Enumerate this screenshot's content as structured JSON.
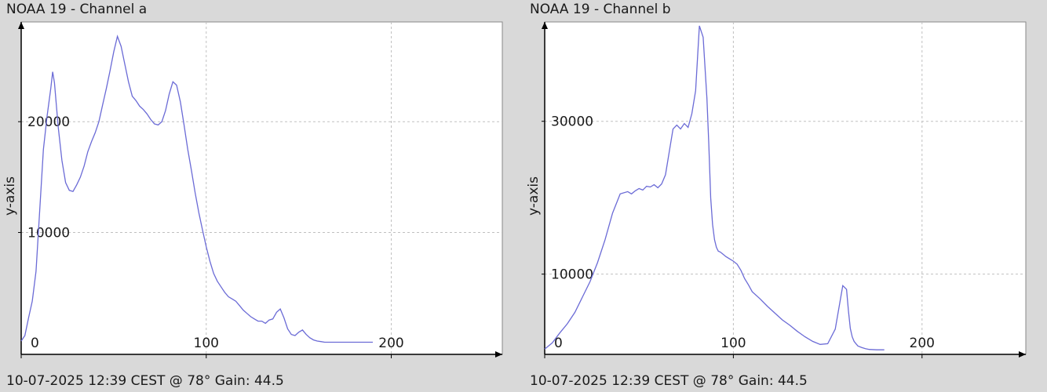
{
  "chart_data": [
    {
      "type": "line",
      "title": "NOAA 19 - Channel a",
      "ylabel": "y-axis",
      "footer": "10-07-2025 12:39 CEST @ 78° Gain: 44.5",
      "xlim": [
        0,
        260
      ],
      "ylim": [
        -1000,
        29000
      ],
      "xticks": [
        0,
        100,
        200
      ],
      "yticks": [
        10000,
        20000
      ],
      "grid": true,
      "color": "#6b6bd6",
      "series": [
        {
          "x": [
            0,
            2,
            4,
            6,
            8,
            10,
            12,
            14,
            16,
            17,
            18,
            19,
            20,
            22,
            24,
            26,
            28,
            30,
            32,
            34,
            36,
            38,
            40,
            42,
            44,
            46,
            48,
            50,
            52,
            54,
            56,
            58,
            60,
            62,
            64,
            66,
            68,
            70,
            72,
            74,
            76,
            78,
            80,
            82,
            84,
            86,
            88,
            90,
            92,
            94,
            96,
            98,
            100,
            102,
            104,
            106,
            108,
            110,
            112,
            114,
            116,
            118,
            120,
            122,
            124,
            126,
            128,
            130,
            132,
            134,
            136,
            138,
            140,
            142,
            144,
            146,
            148,
            150,
            152,
            154,
            156,
            158,
            160,
            162,
            164,
            166,
            168,
            170,
            172,
            174,
            176,
            178,
            180,
            185,
            190
          ],
          "y": [
            200,
            700,
            2300,
            3800,
            6500,
            12000,
            17500,
            20500,
            23000,
            24500,
            23500,
            21500,
            19500,
            16500,
            14500,
            13800,
            13700,
            14300,
            15000,
            16000,
            17300,
            18200,
            19000,
            20000,
            21500,
            23000,
            24600,
            26300,
            27700,
            26800,
            25200,
            23600,
            22300,
            21900,
            21400,
            21100,
            20700,
            20200,
            19800,
            19700,
            20000,
            21000,
            22500,
            23600,
            23300,
            21800,
            19700,
            17500,
            15600,
            13600,
            11800,
            10200,
            8700,
            7400,
            6300,
            5600,
            5100,
            4600,
            4200,
            4000,
            3800,
            3400,
            3000,
            2700,
            2400,
            2200,
            2000,
            2000,
            1800,
            2100,
            2200,
            2800,
            3100,
            2300,
            1300,
            800,
            700,
            1000,
            1200,
            800,
            500,
            300,
            200,
            150,
            100,
            100,
            100,
            100,
            100,
            100,
            100,
            100,
            100,
            100,
            100
          ],
          "y_note": ""
        }
      ]
    },
    {
      "type": "line",
      "title": "NOAA 19 - Channel b",
      "ylabel": "y-axis",
      "footer": "10-07-2025 12:39 CEST @ 78° Gain: 44.5",
      "xlim": [
        0,
        255
      ],
      "ylim": [
        -500,
        43000
      ],
      "xticks": [
        0,
        100,
        200
      ],
      "yticks": [
        10000,
        30000
      ],
      "grid": true,
      "color": "#6b6bd6",
      "series": [
        {
          "x": [
            0,
            4,
            8,
            12,
            16,
            20,
            24,
            28,
            32,
            36,
            40,
            44,
            46,
            48,
            50,
            52,
            54,
            56,
            58,
            60,
            62,
            64,
            66,
            68,
            70,
            72,
            74,
            76,
            78,
            80,
            82,
            84,
            86,
            87,
            88,
            89,
            90,
            91,
            92,
            93,
            94,
            96,
            98,
            100,
            102,
            104,
            106,
            108,
            110,
            114,
            118,
            122,
            126,
            130,
            134,
            138,
            142,
            146,
            150,
            154,
            158,
            160,
            161,
            162,
            163,
            164,
            165,
            166,
            168,
            170,
            172,
            176,
            180
          ],
          "y": [
            200,
            1000,
            2300,
            3500,
            5000,
            7000,
            9000,
            11500,
            14500,
            18000,
            20500,
            20800,
            20500,
            20900,
            21200,
            21000,
            21500,
            21400,
            21700,
            21300,
            21800,
            23000,
            26000,
            29000,
            29500,
            29000,
            29700,
            29200,
            31000,
            34000,
            42500,
            41000,
            33000,
            27000,
            20000,
            16500,
            14500,
            13500,
            13000,
            12900,
            12700,
            12300,
            12000,
            11700,
            11300,
            10500,
            9400,
            8600,
            7700,
            6800,
            5800,
            4900,
            4000,
            3300,
            2500,
            1800,
            1200,
            800,
            900,
            2800,
            8500,
            8000,
            5200,
            2900,
            1800,
            1200,
            900,
            600,
            400,
            250,
            150,
            100,
            100
          ],
          "y_note": ""
        }
      ]
    }
  ]
}
